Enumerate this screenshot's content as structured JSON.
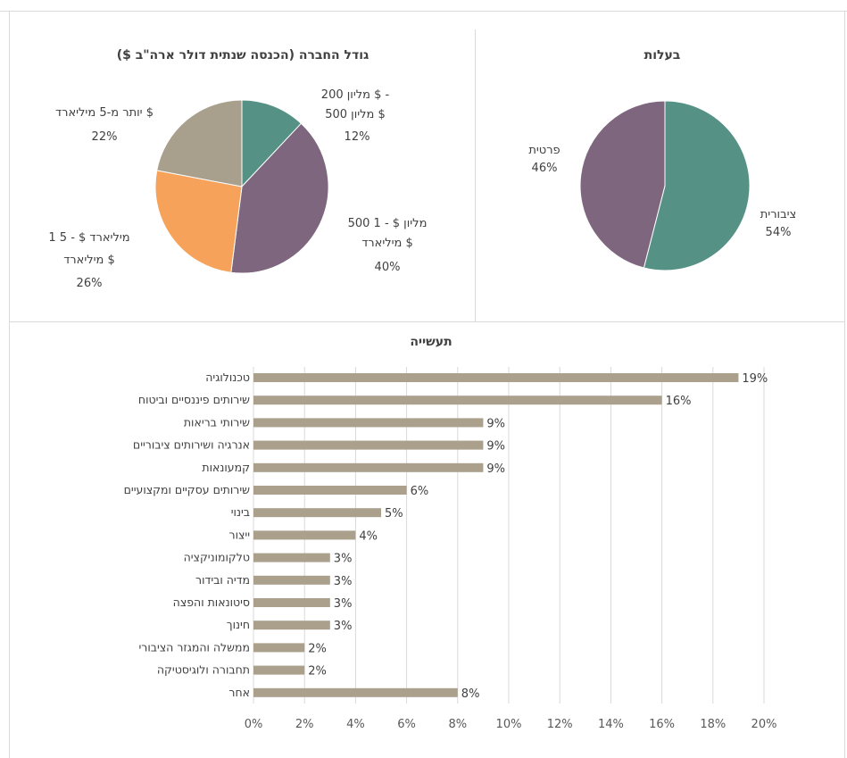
{
  "colors": {
    "teal": "#569186",
    "purple": "#7d667e",
    "orange": "#f6a25a",
    "taupe": "#a89f8c",
    "bar": "#aaa08c",
    "grid": "#d9d9d9",
    "text": "#404040"
  },
  "chart_data": [
    {
      "type": "pie",
      "title": "בעלות",
      "slices": [
        {
          "label": "ציבורית",
          "value": 54,
          "pct": "54%",
          "color": "#569186"
        },
        {
          "label": "פרטית",
          "value": 46,
          "pct": "46%",
          "color": "#7d667e"
        }
      ]
    },
    {
      "type": "pie",
      "title": "גודל החברה (הכנסה שנתית דולר ארה\"ב $)",
      "slices": [
        {
          "label_lines": [
            "200 מליון $ -",
            "500 מליון $"
          ],
          "value": 12,
          "pct": "12%",
          "color": "#569186"
        },
        {
          "label_lines": [
            "500 מליון $ - 1",
            "מיליארד $"
          ],
          "value": 40,
          "pct": "40%",
          "color": "#7d667e"
        },
        {
          "label_lines": [
            "1 מיליארד $ - 5",
            "מיליארד $"
          ],
          "value": 26,
          "pct": "26%",
          "color": "#f6a25a"
        },
        {
          "label_lines": [
            "יותר מ-5 מיליארד $"
          ],
          "value": 22,
          "pct": "22%",
          "color": "#a89f8c"
        }
      ]
    },
    {
      "type": "bar",
      "orientation": "horizontal",
      "title": "תעשייה",
      "categories": [
        "טכנולוגיה",
        "שירותים פיננסיים וביטוח",
        "שירותי בריאות",
        "אנרגיה ושירותים ציבוריים",
        "קמעונאות",
        "שירותים עסקיים ומקצועיים",
        "בינוי",
        "ייצור",
        "טלקומוניקציה",
        "מדיה ובידור",
        "סיטונאות והפצה",
        "חינוך",
        "ממשלה והמגזר הציבורי",
        "תחבורה ולוגיסטיקה",
        "אחר"
      ],
      "values": [
        19,
        16,
        9,
        9,
        9,
        6,
        5,
        4,
        3,
        3,
        3,
        3,
        2,
        2,
        8
      ],
      "value_labels": [
        "19%",
        "16%",
        "9%",
        "9%",
        "9%",
        "6%",
        "5%",
        "4%",
        "3%",
        "3%",
        "3%",
        "3%",
        "2%",
        "2%",
        "8%"
      ],
      "xlim": [
        0,
        20
      ],
      "xticks": [
        "0%",
        "2%",
        "4%",
        "6%",
        "8%",
        "10%",
        "12%",
        "14%",
        "16%",
        "18%",
        "20%"
      ],
      "grid": true
    }
  ]
}
